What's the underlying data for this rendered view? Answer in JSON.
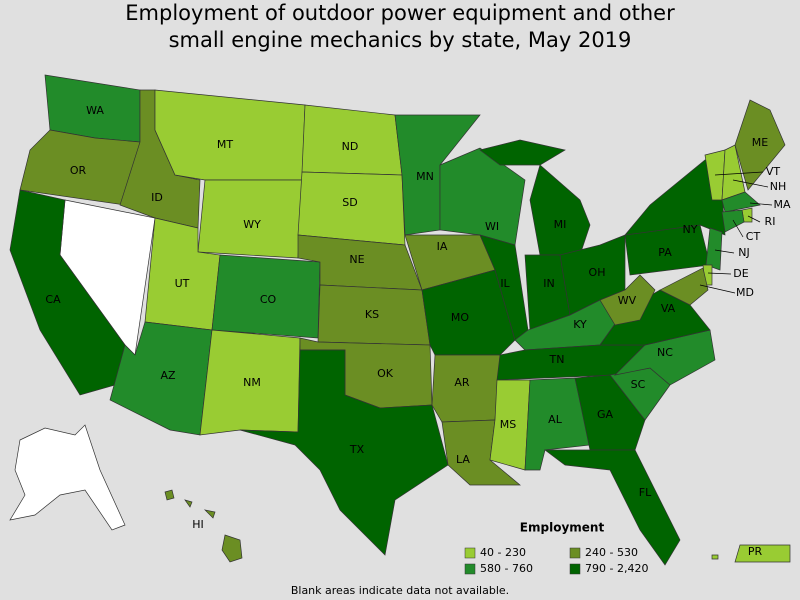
{
  "title": "Employment of outdoor power equipment and other small engine mechanics by state, May 2019",
  "legend": {
    "title": "Employment",
    "items": [
      {
        "label": "40 - 230",
        "color": "#99cc33"
      },
      {
        "label": "240 - 530",
        "color": "#6b8e23"
      },
      {
        "label": "580 - 760",
        "color": "#228b2a"
      },
      {
        "label": "790 - 2,420",
        "color": "#006400"
      }
    ]
  },
  "note": "Blank areas indicate data not available.",
  "states": [
    {
      "label": "WA",
      "range": "580 - 760"
    },
    {
      "label": "OR",
      "range": "240 - 530"
    },
    {
      "label": "CA",
      "range": "790 - 2,420"
    },
    {
      "label": "ID",
      "range": "240 - 530"
    },
    {
      "label": "MT",
      "range": "40 - 230"
    },
    {
      "label": "WY",
      "range": "40 - 230"
    },
    {
      "label": "UT",
      "range": "40 - 230"
    },
    {
      "label": "CO",
      "range": "580 - 760"
    },
    {
      "label": "AZ",
      "range": "580 - 760"
    },
    {
      "label": "NM",
      "range": "40 - 230"
    },
    {
      "label": "ND",
      "range": "40 - 230"
    },
    {
      "label": "SD",
      "range": "40 - 230"
    },
    {
      "label": "NE",
      "range": "240 - 530"
    },
    {
      "label": "KS",
      "range": "240 - 530"
    },
    {
      "label": "OK",
      "range": "240 - 530"
    },
    {
      "label": "TX",
      "range": "790 - 2,420"
    },
    {
      "label": "MN",
      "range": "580 - 760"
    },
    {
      "label": "IA",
      "range": "240 - 530"
    },
    {
      "label": "MO",
      "range": "790 - 2,420"
    },
    {
      "label": "AR",
      "range": "240 - 530"
    },
    {
      "label": "LA",
      "range": "240 - 530"
    },
    {
      "label": "WI",
      "range": "580 - 760"
    },
    {
      "label": "IL",
      "range": "790 - 2,420"
    },
    {
      "label": "MI",
      "range": "790 - 2,420"
    },
    {
      "label": "IN",
      "range": "790 - 2,420"
    },
    {
      "label": "OH",
      "range": "790 - 2,420"
    },
    {
      "label": "KY",
      "range": "580 - 760"
    },
    {
      "label": "TN",
      "range": "790 - 2,420"
    },
    {
      "label": "MS",
      "range": "40 - 230"
    },
    {
      "label": "AL",
      "range": "580 - 760"
    },
    {
      "label": "GA",
      "range": "790 - 2,420"
    },
    {
      "label": "FL",
      "range": "790 - 2,420"
    },
    {
      "label": "SC",
      "range": "580 - 760"
    },
    {
      "label": "NC",
      "range": "580 - 760"
    },
    {
      "label": "VA",
      "range": "790 - 2,420"
    },
    {
      "label": "WV",
      "range": "240 - 530"
    },
    {
      "label": "PA",
      "range": "790 - 2,420"
    },
    {
      "label": "NY",
      "range": "790 - 2,420"
    },
    {
      "label": "VT",
      "range": "40 - 230"
    },
    {
      "label": "NH",
      "range": "40 - 230"
    },
    {
      "label": "ME",
      "range": "240 - 530"
    },
    {
      "label": "MA",
      "range": "580 - 760"
    },
    {
      "label": "RI",
      "range": "40 - 230"
    },
    {
      "label": "CT",
      "range": "580 - 760"
    },
    {
      "label": "NJ",
      "range": "580 - 760"
    },
    {
      "label": "DE",
      "range": "40 - 230"
    },
    {
      "label": "MD",
      "range": "240 - 530"
    },
    {
      "label": "HI",
      "range": "240 - 530"
    },
    {
      "label": "PR",
      "range": "40 - 230"
    }
  ]
}
